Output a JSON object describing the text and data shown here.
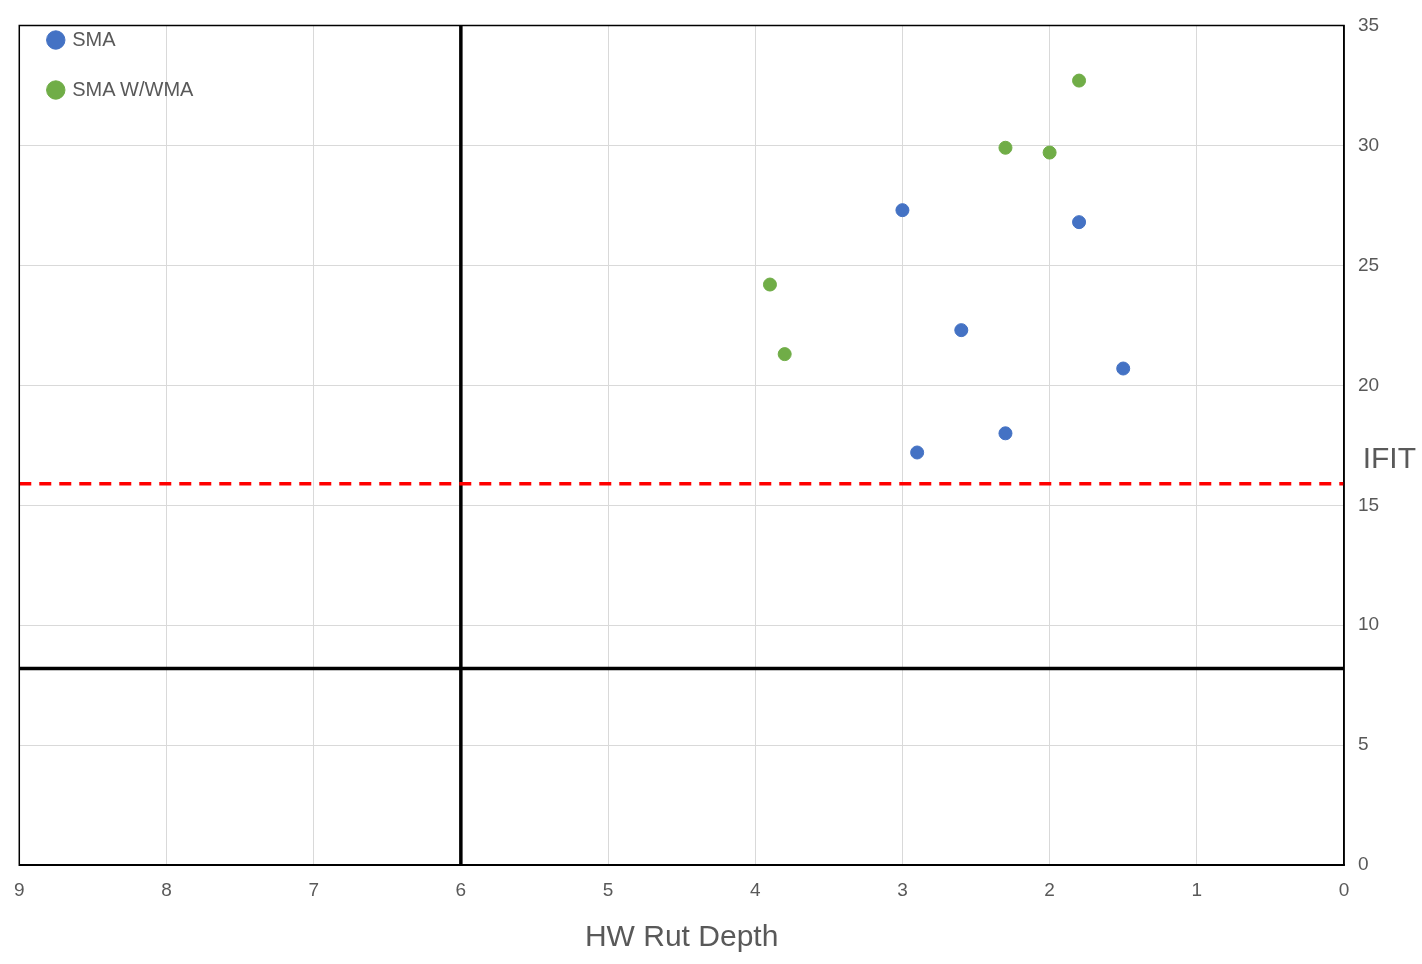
{
  "chart_data": {
    "type": "scatter",
    "xlabel": "HW Rut Depth",
    "ylabel": "IFIT",
    "xlim": [
      9,
      0
    ],
    "xticks": [
      9,
      8,
      7,
      6,
      5,
      4,
      3,
      2,
      1,
      0
    ],
    "ylim": [
      0,
      35
    ],
    "yticks": [
      0,
      5,
      10,
      15,
      20,
      25,
      30,
      35
    ],
    "grid": true,
    "legend": "top left",
    "marker": "circle",
    "series": [
      {
        "name": "SMA",
        "color": "#4472c4",
        "x": [
          3.0,
          1.8,
          2.6,
          1.5,
          2.3,
          2.9
        ],
        "values": [
          27.3,
          26.8,
          22.3,
          20.7,
          18.0,
          17.2
        ]
      },
      {
        "name": "SMA W/WMA",
        "color": "#70ad47",
        "x": [
          1.8,
          2.3,
          2.0,
          3.9,
          3.8
        ],
        "values": [
          32.7,
          29.9,
          29.7,
          24.2,
          21.3
        ]
      }
    ],
    "ref_lines": [
      {
        "axis": "x",
        "value": 6,
        "color": "#000000",
        "line_style": "solid"
      },
      {
        "axis": "y",
        "value": 8.2,
        "color": "#000000",
        "line_style": "solid"
      },
      {
        "axis": "y",
        "value": 15.9,
        "color": "#ff0000",
        "line_style": "dashed"
      }
    ]
  }
}
